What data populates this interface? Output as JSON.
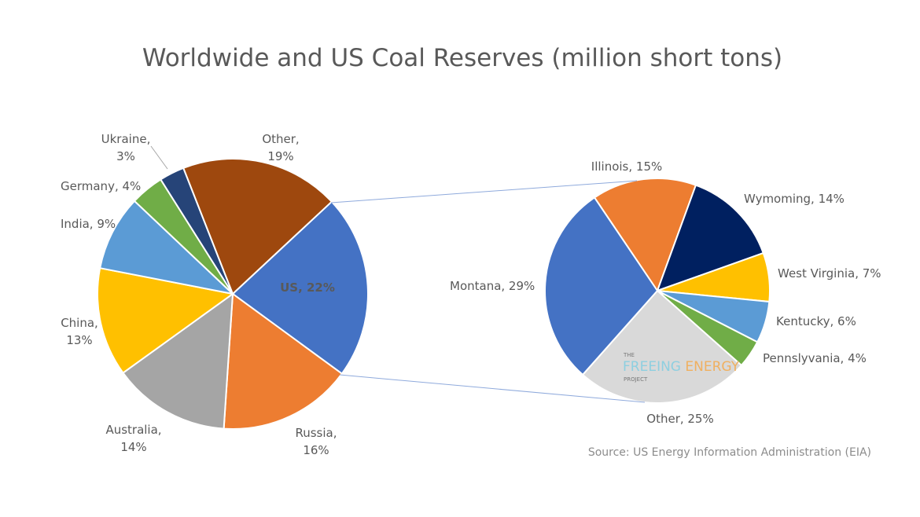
{
  "chart_data": [
    {
      "type": "pie",
      "title": "Worldwide and US Coal Reserves (million short tons)",
      "slices": [
        {
          "label": "US",
          "value": 22,
          "color": "#4472C4",
          "text": "US, 22%"
        },
        {
          "label": "Russia",
          "value": 16,
          "color": "#ED7D31",
          "text": [
            "Russia,",
            "16%"
          ]
        },
        {
          "label": "Australia",
          "value": 14,
          "color": "#A5A5A5",
          "text": [
            "Australia,",
            "14%"
          ]
        },
        {
          "label": "China",
          "value": 13,
          "color": "#FFC000",
          "text": [
            "China,",
            "13%"
          ]
        },
        {
          "label": "India",
          "value": 9,
          "color": "#5B9BD5",
          "text": [
            "India, 9%"
          ]
        },
        {
          "label": "Germany",
          "value": 4,
          "color": "#70AD47",
          "text": [
            "Germany, 4%"
          ]
        },
        {
          "label": "Ukraine",
          "value": 3,
          "color": "#264478",
          "text": [
            "Ukraine,",
            "3%"
          ]
        },
        {
          "label": "Other",
          "value": 19,
          "color": "#9E480E",
          "text": [
            "Other,",
            "19%"
          ]
        }
      ]
    },
    {
      "type": "pie",
      "slices": [
        {
          "label": "Illinois",
          "value": 15,
          "color": "#ED7D31",
          "text": "Illinois, 15%"
        },
        {
          "label": "Wymoming",
          "value": 14,
          "color": "#002060",
          "text": "Wymoming, 14%"
        },
        {
          "label": "West Virginia",
          "value": 7,
          "color": "#FFC000",
          "text": "West Virginia, 7%"
        },
        {
          "label": "Kentucky",
          "value": 6,
          "color": "#5B9BD5",
          "text": "Kentucky, 6%"
        },
        {
          "label": "Pennslyvania",
          "value": 4,
          "color": "#70AD47",
          "text": "Pennslyvania, 4%"
        },
        {
          "label": "Other",
          "value": 25,
          "color": "#D9D9D9",
          "text": "Other, 25%"
        },
        {
          "label": "Montana",
          "value": 29,
          "color": "#4472C4",
          "text": "Montana, 29%"
        }
      ]
    }
  ],
  "source": "Source: US Energy Information Administration (EIA)",
  "logo": {
    "line1": "THE",
    "line2a": "FREEING",
    "line2b": "ENERGY",
    "line3": "PROJECT"
  }
}
